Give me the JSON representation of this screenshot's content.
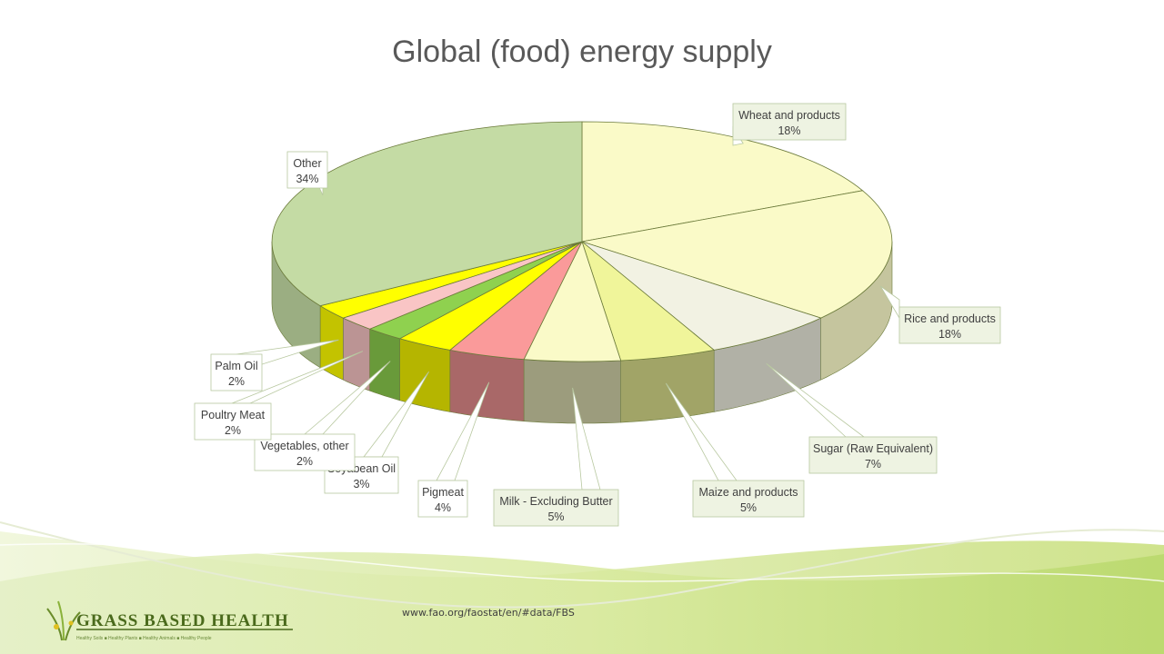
{
  "source_text": "www.fao.org/faostat/en/#data/FBS",
  "logo": {
    "name": "GRASS BASED HEALTH",
    "tagline": "Healthy Soils ■ Healthy Plants ■ Healthy Animals ■ Healthy People"
  },
  "chart_data": {
    "type": "pie",
    "title": "Global (food) energy supply",
    "three_d": true,
    "start": "12 o'clock, clockwise",
    "label_format": "category name and percentage",
    "slices": [
      {
        "label": "Wheat and products",
        "value": 18,
        "display": "18%",
        "color": "#fafac8"
      },
      {
        "label": "Rice and products",
        "value": 18,
        "display": "18%",
        "color": "#fafac8"
      },
      {
        "label": "Sugar (Raw Equivalent)",
        "value": 7,
        "display": "7%",
        "color": "#f2f2e3"
      },
      {
        "label": "Maize and products",
        "value": 5,
        "display": "5%",
        "color": "#f0f59a"
      },
      {
        "label": "Milk - Excluding Butter",
        "value": 5,
        "display": "5%",
        "color": "#fafac8"
      },
      {
        "label": "Pigmeat",
        "value": 4,
        "display": "4%",
        "color": "#fa9a9a"
      },
      {
        "label": "Soyabean Oil",
        "value": 3,
        "display": "3%",
        "color": "#ffff00"
      },
      {
        "label": "Vegetables, other",
        "value": 2,
        "display": "2%",
        "color": "#8fd14f"
      },
      {
        "label": "Poultry Meat",
        "value": 2,
        "display": "2%",
        "color": "#f9c5c5"
      },
      {
        "label": "Palm Oil",
        "value": 2,
        "display": "2%",
        "color": "#ffff00"
      },
      {
        "label": "Other",
        "value": 34,
        "display": "34%",
        "color": "#c4dba4"
      }
    ]
  }
}
